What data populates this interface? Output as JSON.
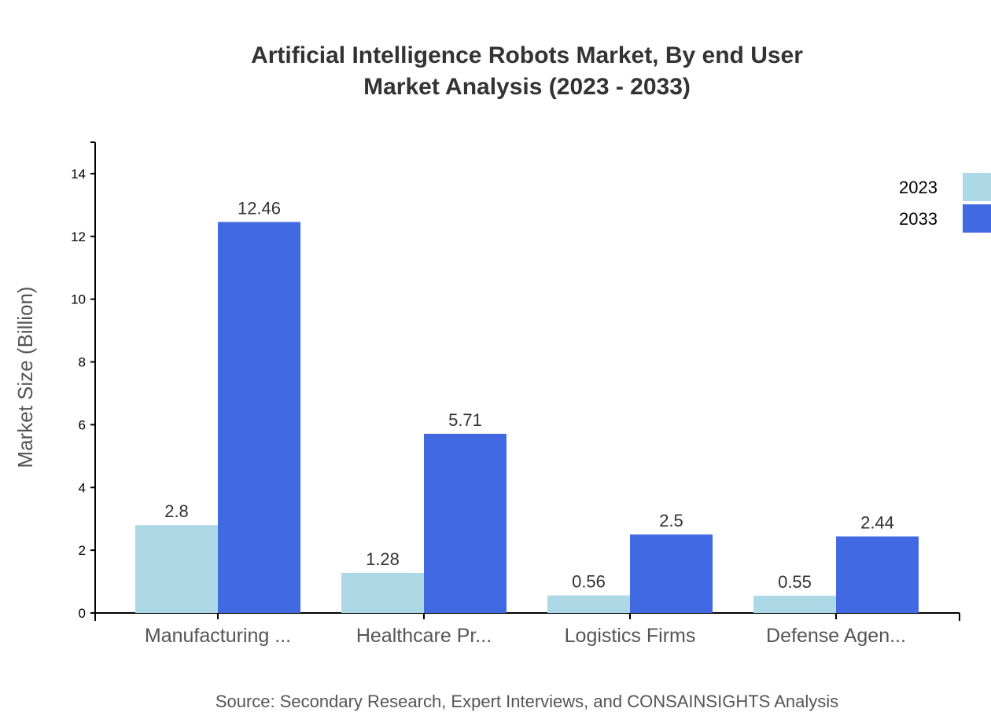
{
  "chart_data": {
    "type": "bar",
    "title": [
      "Artificial Intelligence Robots Market, By end User",
      "Market Analysis (2023 - 2033)"
    ],
    "ylabel": "Market Size (Billion)",
    "xlabel": "",
    "ylim": [
      0,
      15
    ],
    "yticks": [
      0,
      2,
      4,
      6,
      8,
      10,
      12,
      14
    ],
    "categories": [
      "Manufacturing ...",
      "Healthcare Pr...",
      "Logistics Firms",
      "Defense Agen..."
    ],
    "series": [
      {
        "name": "2023",
        "color": "#add8e6",
        "values": [
          2.8,
          1.28,
          0.56,
          0.55
        ]
      },
      {
        "name": "2033",
        "color": "#4169e1",
        "values": [
          12.46,
          5.71,
          2.5,
          2.44
        ]
      }
    ],
    "legend": "top-right",
    "grid": false,
    "source": "Source: Secondary Research, Expert Interviews, and CONSAINSIGHTS Analysis"
  }
}
